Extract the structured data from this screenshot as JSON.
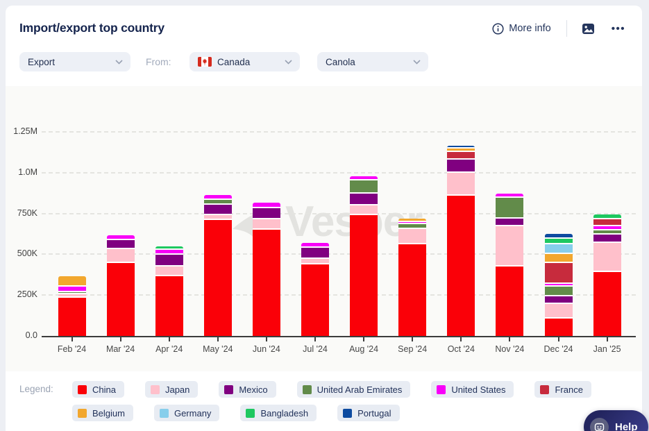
{
  "header": {
    "title": "Import/export top country",
    "more_info_label": "More info",
    "ellipsis": "•••",
    "icons": {
      "info": "info-circle",
      "export_image": "image-picture",
      "menu": "ellipsis-horizontal"
    }
  },
  "filters": {
    "trade_type": {
      "value": "Export"
    },
    "from_label": "From:",
    "country": {
      "value": "Canada",
      "flag": "canada-flag"
    },
    "commodity": {
      "value": "Canola"
    }
  },
  "watermark": "Vesper",
  "chart_data": {
    "type": "bar",
    "stacked": true,
    "values_scale": "thousands",
    "categories": [
      "Feb '24",
      "Mar '24",
      "Apr '24",
      "May '24",
      "Jun '24",
      "Jul '24",
      "Aug '24",
      "Sep '24",
      "Oct '24",
      "Nov '24",
      "Dec '24",
      "Jan '25"
    ],
    "yticks": [
      "1.25M",
      "1.0M",
      "750K",
      "500K",
      "250K",
      "0.0"
    ],
    "ytick_values": [
      1250,
      1000,
      750,
      500,
      250,
      0
    ],
    "ylim": [
      0,
      1250000
    ],
    "grid": "dashed-horizontal",
    "series": [
      {
        "name": "China",
        "color": "#fa0008",
        "values": [
          234,
          446,
          365,
          710,
          652,
          440,
          740,
          563,
          858,
          426,
          105,
          393
        ]
      },
      {
        "name": "Japan",
        "color": "#ffc0cb",
        "values": [
          21,
          84,
          60,
          28,
          61,
          34,
          60,
          93,
          142,
          247,
          90,
          178
        ]
      },
      {
        "name": "Mexico",
        "color": "#800080",
        "values": [
          0,
          57,
          71,
          67,
          71,
          68,
          72,
          0,
          82,
          47,
          49,
          50
        ]
      },
      {
        "name": "United Arab Emirates",
        "color": "#628b4a",
        "values": [
          13,
          0,
          0,
          29,
          0,
          0,
          80,
          28,
          0,
          128,
          57,
          24
        ]
      },
      {
        "name": "United States",
        "color": "#f800f8",
        "values": [
          35,
          28,
          31,
          31,
          31,
          26,
          26,
          10,
          0,
          24,
          19,
          28
        ]
      },
      {
        "name": "France",
        "color": "#c72b3d",
        "values": [
          0,
          0,
          0,
          0,
          0,
          0,
          0,
          0,
          43,
          0,
          126,
          43
        ]
      },
      {
        "name": "Belgium",
        "color": "#f2a72e",
        "values": [
          61,
          0,
          0,
          0,
          0,
          0,
          0,
          21,
          21,
          0,
          57,
          0
        ]
      },
      {
        "name": "Germany",
        "color": "#87ceeb",
        "values": [
          0,
          0,
          0,
          0,
          0,
          0,
          0,
          0,
          0,
          0,
          58,
          0
        ]
      },
      {
        "name": "Bangladesh",
        "color": "#1ec860",
        "values": [
          0,
          0,
          23,
          0,
          0,
          0,
          0,
          0,
          0,
          0,
          35,
          28
        ]
      },
      {
        "name": "Portugal",
        "color": "#0d4ba0",
        "values": [
          0,
          0,
          0,
          0,
          0,
          0,
          0,
          0,
          21,
          0,
          29,
          0
        ]
      }
    ]
  },
  "legend": {
    "label": "Legend:",
    "rows": [
      [
        "China",
        "Japan",
        "Mexico",
        "United Arab Emirates",
        "United States",
        "France"
      ],
      [
        "Belgium",
        "Germany",
        "Bangladesh",
        "Portugal"
      ]
    ]
  },
  "help": {
    "label": "Help",
    "icon": "smiley-assistant"
  }
}
